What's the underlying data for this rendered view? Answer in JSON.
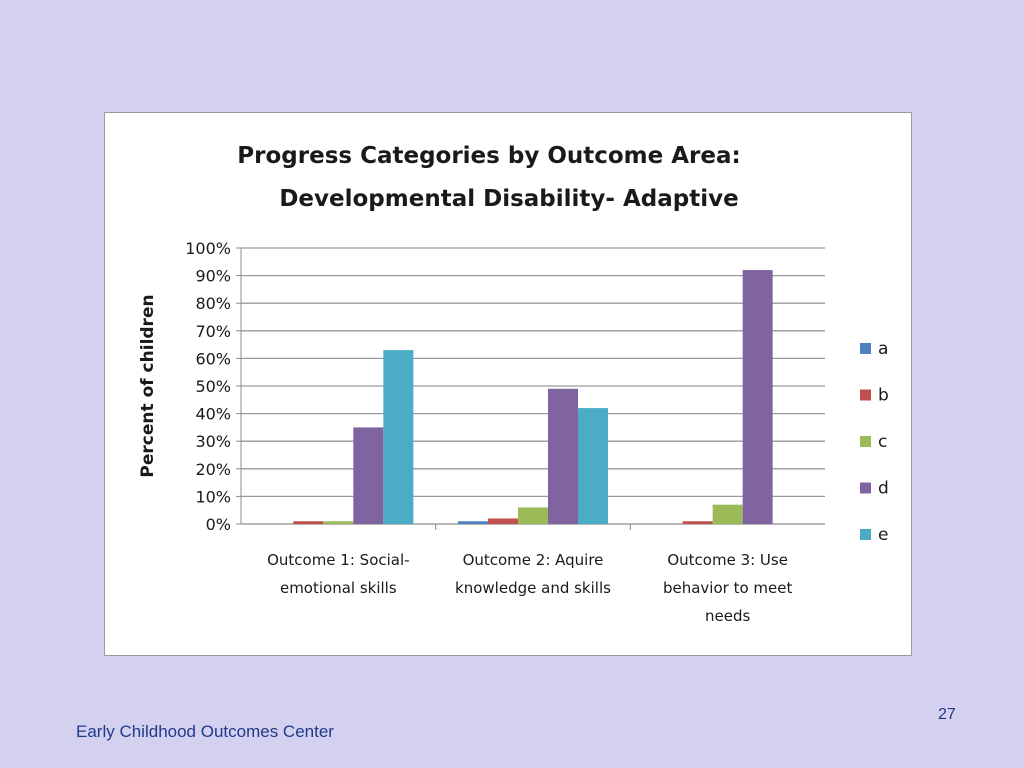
{
  "chart_data": {
    "type": "bar",
    "title": "Progress Categories by Outcome Area:",
    "subtitle": "Developmental Disability- Adaptive",
    "xlabel": "",
    "ylabel": "Percent of children",
    "ylim": [
      0,
      100
    ],
    "yticks": [
      "0%",
      "10%",
      "20%",
      "30%",
      "40%",
      "50%",
      "60%",
      "70%",
      "80%",
      "90%",
      "100%"
    ],
    "grid": true,
    "legend_position": "right",
    "categories": [
      [
        "Outcome 1: Social-",
        "emotional skills"
      ],
      [
        "Outcome 2: Aquire",
        "knowledge and skills"
      ],
      [
        "Outcome 3: Use",
        "behavior to meet",
        "needs"
      ]
    ],
    "series": [
      {
        "name": "a",
        "color": "#4f81bd",
        "values": [
          0,
          1,
          0
        ]
      },
      {
        "name": "b",
        "color": "#c0504d",
        "values": [
          1,
          2,
          1
        ]
      },
      {
        "name": "c",
        "color": "#9bbb59",
        "values": [
          1,
          6,
          7
        ]
      },
      {
        "name": "d",
        "color": "#8064a2",
        "values": [
          35,
          49,
          92
        ]
      },
      {
        "name": "e",
        "color": "#4bacc6",
        "values": [
          63,
          42,
          0
        ]
      }
    ]
  },
  "footer": {
    "org": "Early Childhood Outcomes Center",
    "page_number": "27"
  }
}
